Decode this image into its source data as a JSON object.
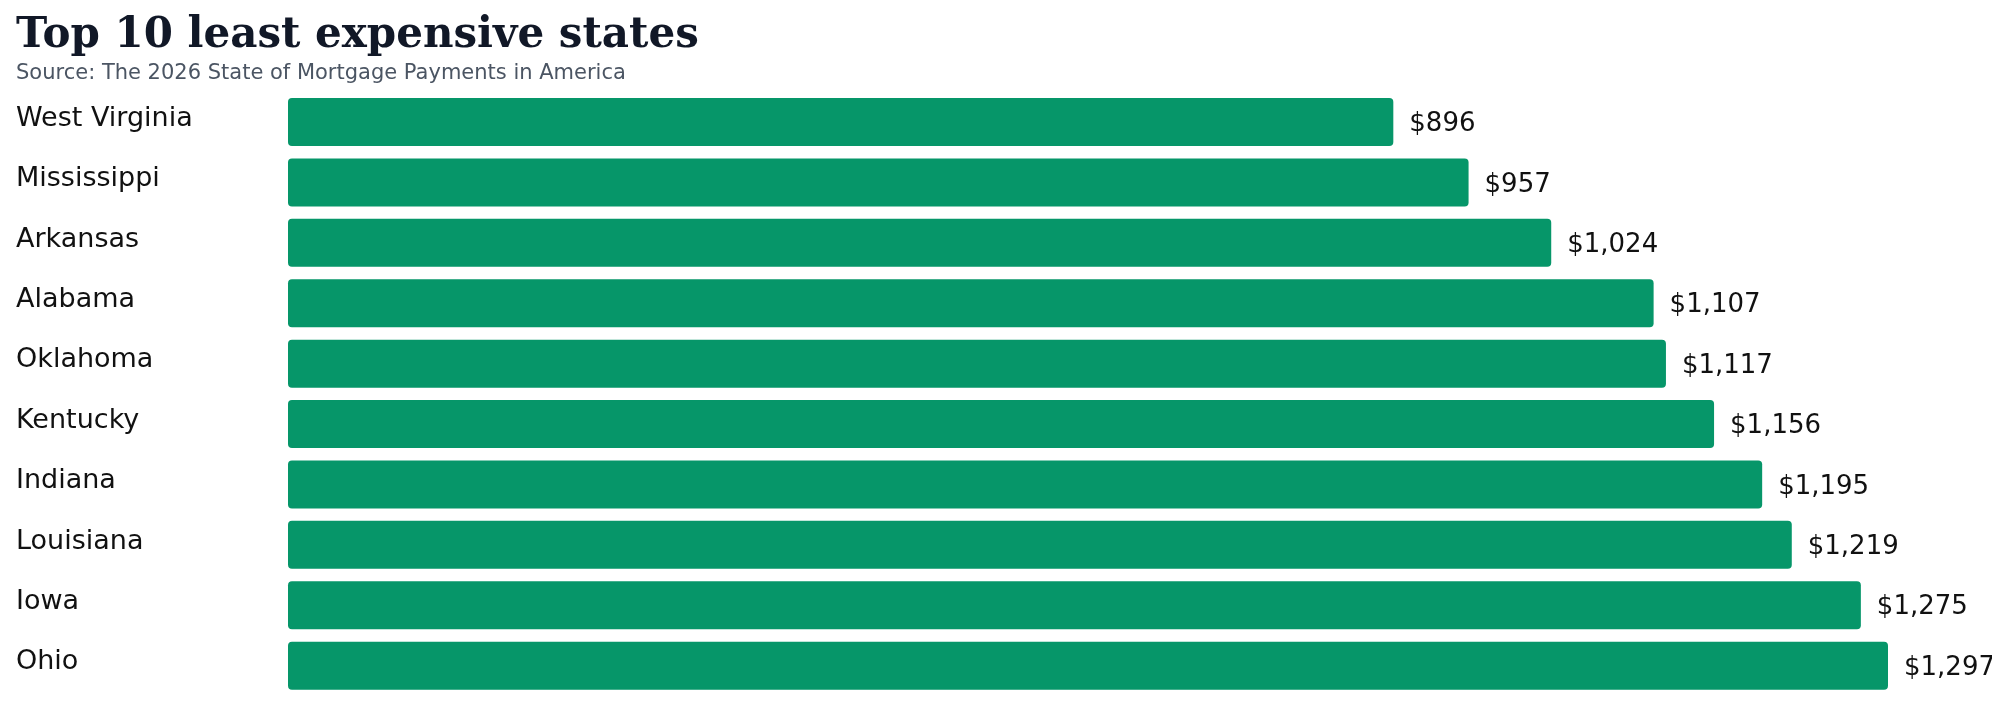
{
  "chart_data": {
    "type": "bar",
    "orientation": "horizontal",
    "title": "Top 10 least expensive states",
    "subtitle": "Source: The 2026 State of Mortgage Payments in America",
    "categories": [
      "West Virginia",
      "Mississippi",
      "Arkansas",
      "Alabama",
      "Oklahoma",
      "Kentucky",
      "Indiana",
      "Louisiana",
      "Iowa",
      "Ohio"
    ],
    "values": [
      896,
      957,
      1024,
      1107,
      1117,
      1156,
      1195,
      1219,
      1275,
      1297
    ],
    "value_labels": [
      "$896",
      "$957",
      "$1,024",
      "$1,107",
      "$1,117",
      "$1,156",
      "$1,195",
      "$1,219",
      "$1,275",
      "$1,297"
    ],
    "color": "#069669"
  }
}
